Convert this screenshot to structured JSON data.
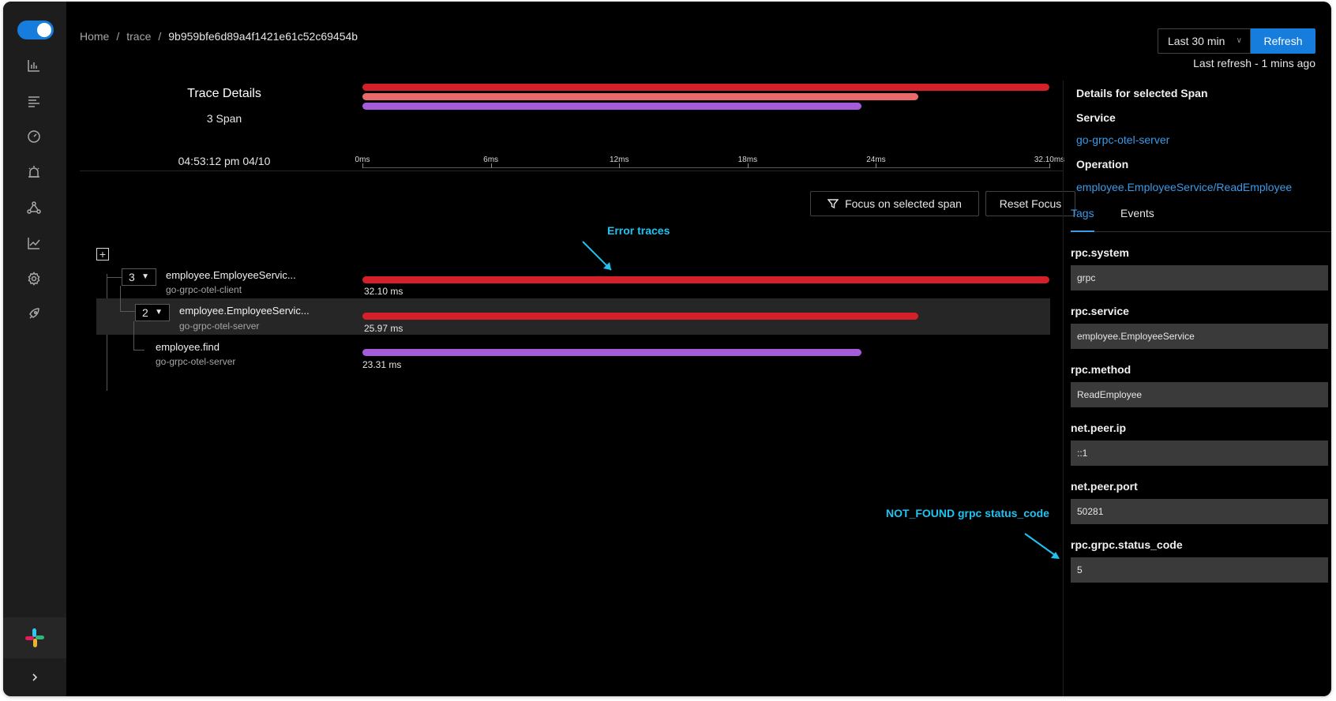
{
  "breadcrumb": {
    "home": "Home",
    "section": "trace",
    "trace_id": "9b959bfe6d89a4f1421e61c52c69454b"
  },
  "header": {
    "time_range": "Last 30 min",
    "refresh_label": "Refresh",
    "last_refresh": "Last refresh - 1 mins ago"
  },
  "summary": {
    "title": "Trace Details",
    "span_count": "3 Span",
    "timestamp": "04:53:12 pm 04/10"
  },
  "timeline": {
    "ticks": [
      "0ms",
      "6ms",
      "12ms",
      "18ms",
      "24ms",
      "32.10ms"
    ]
  },
  "actions": {
    "focus_label": "Focus on selected span",
    "reset_label": "Reset Focus"
  },
  "annotations": {
    "error_traces": "Error traces",
    "not_found": "NOT_FOUND grpc status_code"
  },
  "spans": [
    {
      "child_count": "3",
      "name": "employee.EmployeeServic...",
      "service": "go-grpc-otel-client",
      "duration": "32.10 ms",
      "color": "#d32029",
      "fraction": 1.0
    },
    {
      "child_count": "2",
      "name": "employee.EmployeeServic...",
      "service": "go-grpc-otel-server",
      "duration": "25.97 ms",
      "color": "#d32029",
      "fraction": 0.809
    },
    {
      "name": "employee.find",
      "service": "go-grpc-otel-server",
      "duration": "23.31 ms",
      "color": "#a55cdb",
      "fraction": 0.726
    }
  ],
  "minimap_colors": [
    "#d32029",
    "#e86a6a",
    "#a55cdb"
  ],
  "details": {
    "heading": "Details for selected Span",
    "service_label": "Service",
    "service_value": "go-grpc-otel-server",
    "operation_label": "Operation",
    "operation_value": "employee.EmployeeService/ReadEmployee",
    "tabs": [
      "Tags",
      "Events"
    ],
    "tags": [
      {
        "key": "rpc.system",
        "value": "grpc"
      },
      {
        "key": "rpc.service",
        "value": "employee.EmployeeService"
      },
      {
        "key": "rpc.method",
        "value": "ReadEmployee"
      },
      {
        "key": "net.peer.ip",
        "value": "::1"
      },
      {
        "key": "net.peer.port",
        "value": "50281"
      },
      {
        "key": "rpc.grpc.status_code",
        "value": "5"
      }
    ]
  },
  "sidebar": {
    "icons": [
      "dashboard-chart-icon",
      "list-icon",
      "gauge-icon",
      "alarm-icon",
      "service-map-icon",
      "line-chart-icon",
      "settings-icon",
      "rocket-icon",
      "slack-icon",
      "chevron-right-icon"
    ]
  },
  "colors": {
    "accent": "#177ddc",
    "link": "#3c9ae8",
    "error": "#d32029",
    "annotation": "#1fc3f2"
  }
}
